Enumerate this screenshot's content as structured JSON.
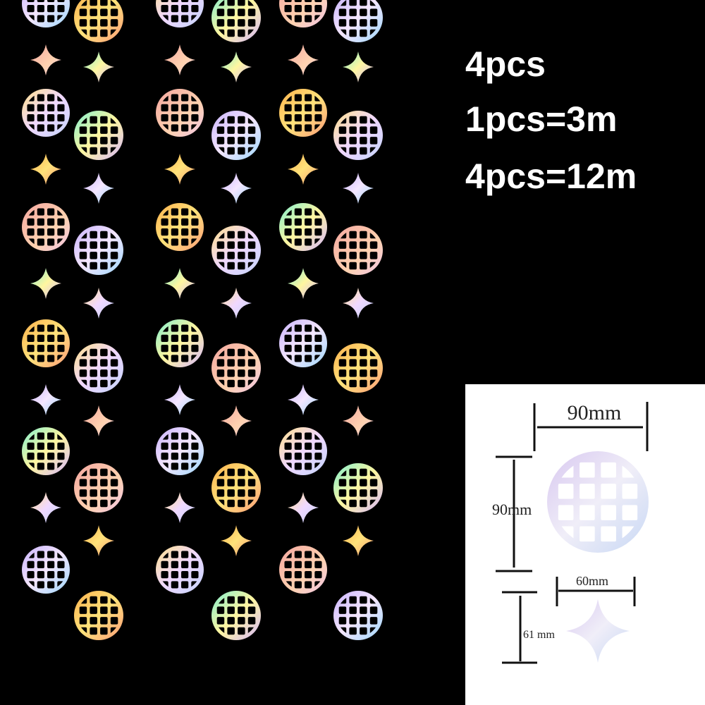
{
  "info": {
    "lines": [
      "4pcs",
      "1pcs=3m",
      "4pcs=12m"
    ]
  },
  "dimensions": {
    "ball_width": "90mm",
    "ball_height": "90mm",
    "star_width": "60mm",
    "star_height": "61 mm"
  }
}
